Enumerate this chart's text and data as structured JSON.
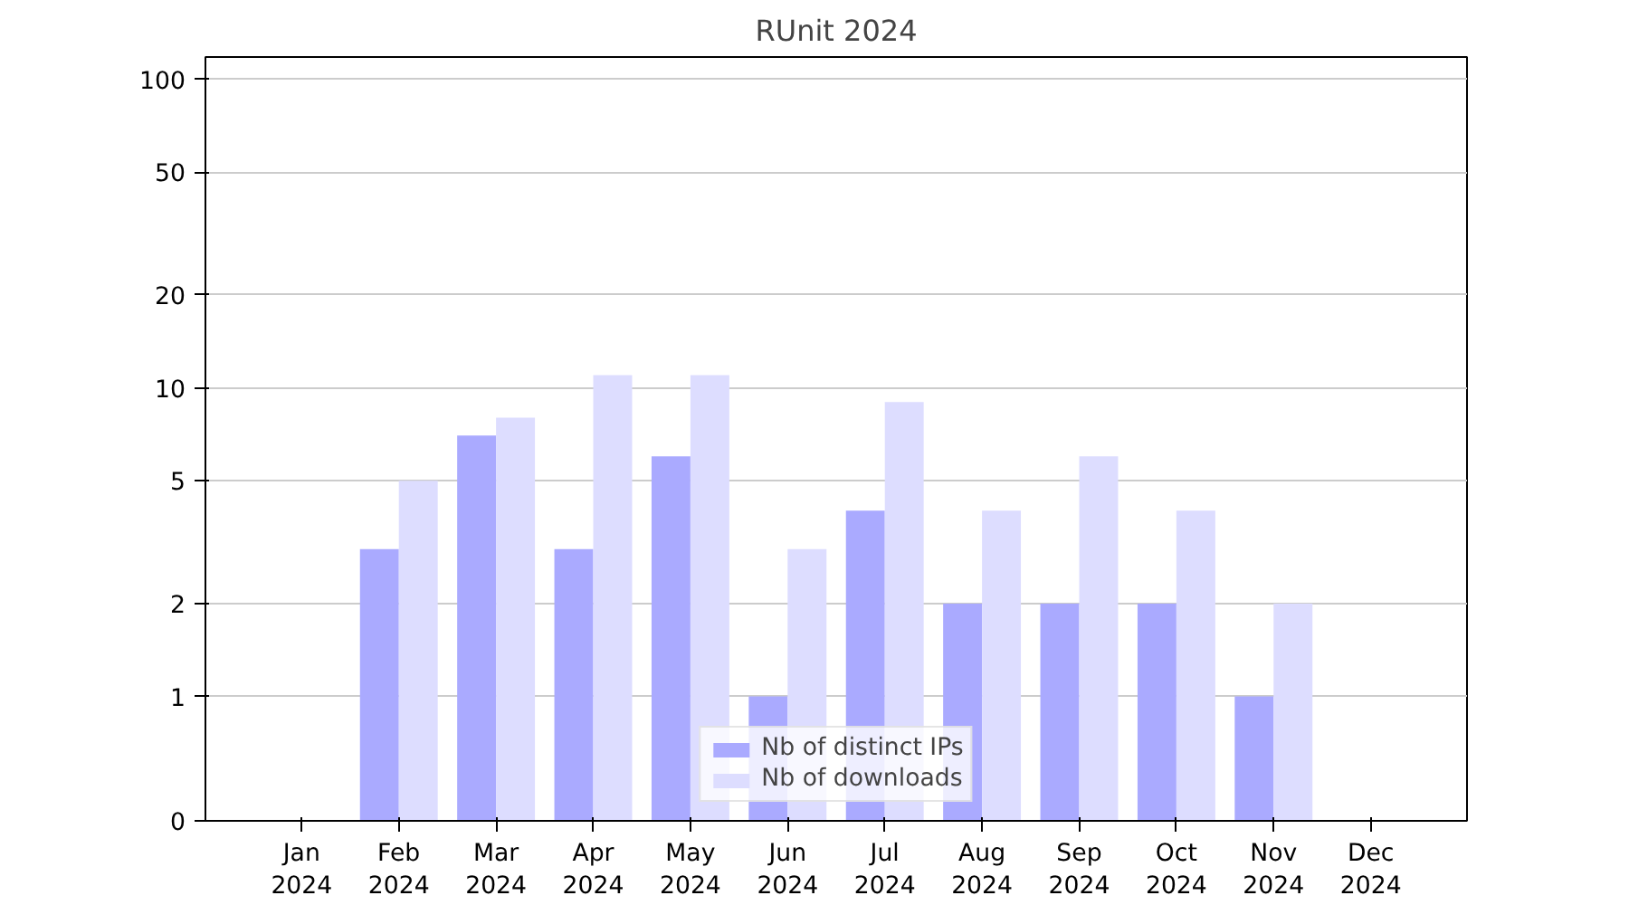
{
  "chart_data": {
    "type": "bar",
    "title": "RUnit 2024",
    "categories": [
      "Jan\n2024",
      "Feb\n2024",
      "Mar\n2024",
      "Apr\n2024",
      "May\n2024",
      "Jun\n2024",
      "Jul\n2024",
      "Aug\n2024",
      "Sep\n2024",
      "Oct\n2024",
      "Nov\n2024",
      "Dec\n2024"
    ],
    "series": [
      {
        "name": "Nb of distinct IPs",
        "color": "#aaaaff",
        "values": [
          0,
          3,
          7,
          3,
          6,
          1,
          4,
          2,
          2,
          2,
          1,
          0
        ]
      },
      {
        "name": "Nb of downloads",
        "color": "#ddddff",
        "values": [
          0,
          5,
          8,
          11,
          11,
          3,
          9,
          4,
          6,
          4,
          2,
          0
        ]
      }
    ],
    "log": "y",
    "ylim": [
      0,
      118
    ],
    "yticks": [
      0,
      1,
      2,
      5,
      10,
      20,
      50,
      100
    ],
    "grid": "y",
    "legend": "bottom"
  }
}
